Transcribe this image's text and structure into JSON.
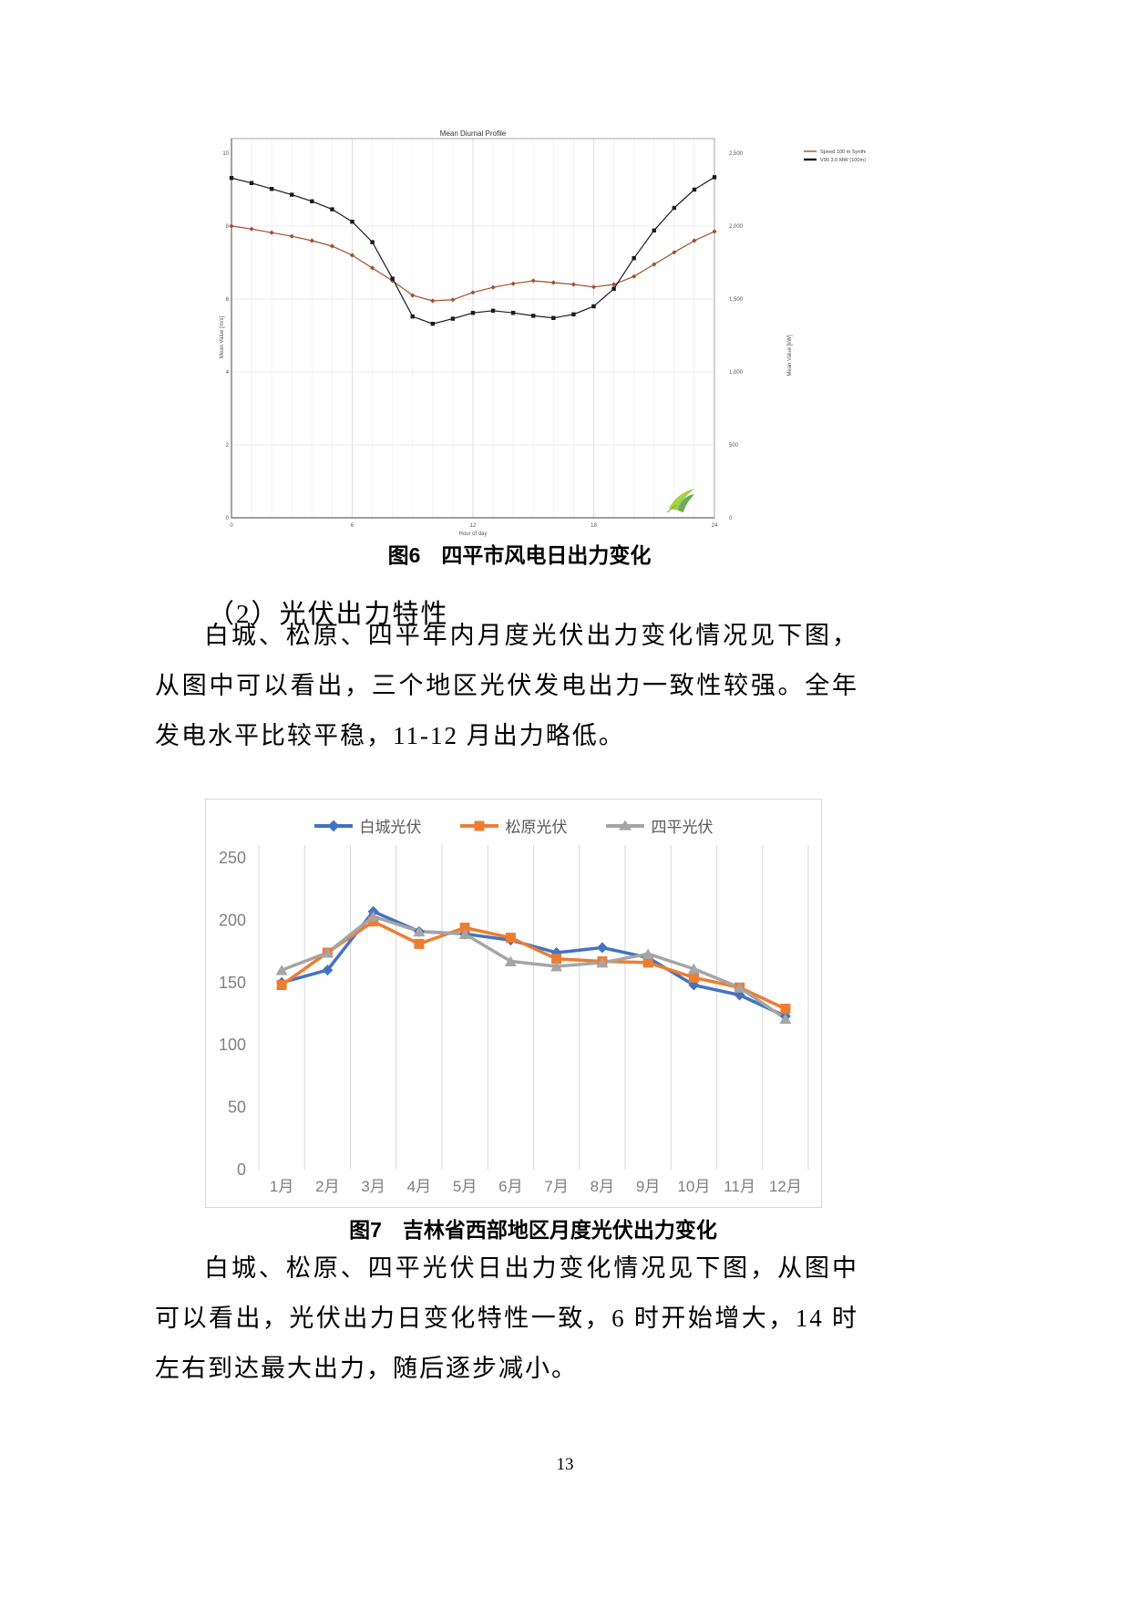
{
  "page": {
    "number": "13",
    "background": "#ffffff"
  },
  "figure6": {
    "caption": "图6　四平市风电日出力变化"
  },
  "section": {
    "heading": "（2）光伏出力特性"
  },
  "paragraphs": {
    "p1": "白城、松原、四平年内月度光伏出力变化情况见下图，从图中可以看出，三个地区光伏发电出力一致性较强。全年发电水平比较平稳，11-12 月出力略低。",
    "p2": "白城、松原、四平光伏日出力变化情况见下图，从图中可以看出，光伏出力日变化特性一致，6 时开始增大，14 时左右到达最大出力，随后逐步减小。"
  },
  "figure7": {
    "caption": "图7　吉林省西部地区月度光伏出力变化"
  },
  "chart_data": [
    {
      "type": "line",
      "title": "Mean Diurnal Profile",
      "xlabel": "Hour of day",
      "ylabel_left": "Mean Value [m/s]",
      "ylabel_right": "Mean Value [kW]",
      "x_range": [
        0,
        24
      ],
      "xticks": [
        0,
        6,
        12,
        18,
        24
      ],
      "ylim_left": [
        0,
        10
      ],
      "yticks_left": [
        0,
        2,
        4,
        6,
        8,
        10
      ],
      "ylim_right": [
        0,
        2500
      ],
      "yticks_right": [
        "0",
        "500",
        "1,000",
        "1,500",
        "2,000",
        "2,500"
      ],
      "grid": true,
      "legend_position": "top-right-outside",
      "series": [
        {
          "name": "Speed 100 m Synthesized",
          "axis": "left",
          "color": "#a0522d",
          "marker": "diamond",
          "values": [
            8.0,
            7.92,
            7.82,
            7.72,
            7.6,
            7.45,
            7.2,
            6.85,
            6.5,
            6.1,
            5.95,
            5.98,
            6.18,
            6.32,
            6.42,
            6.5,
            6.45,
            6.4,
            6.33,
            6.4,
            6.62,
            6.95,
            7.28,
            7.6,
            7.85
          ]
        },
        {
          "name": "V90 3.0 MW (100m) Power Output",
          "axis": "right",
          "color": "#1a1a1a",
          "marker": "square",
          "values": [
            2330,
            2295,
            2255,
            2215,
            2170,
            2115,
            2030,
            1890,
            1640,
            1380,
            1330,
            1365,
            1405,
            1420,
            1405,
            1385,
            1370,
            1395,
            1450,
            1570,
            1780,
            1970,
            2125,
            2250,
            2335
          ]
        }
      ]
    },
    {
      "type": "line",
      "title": "",
      "categories": [
        "1月",
        "2月",
        "3月",
        "4月",
        "5月",
        "6月",
        "7月",
        "8月",
        "9月",
        "10月",
        "11月",
        "12月"
      ],
      "ylim": [
        0,
        250
      ],
      "yticks": [
        0,
        50,
        100,
        150,
        200,
        250
      ],
      "grid": "vertical-only",
      "legend_position": "top",
      "series": [
        {
          "name": "白城光伏",
          "color": "#4472C4",
          "marker": "diamond",
          "values": [
            150,
            160,
            207,
            191,
            189,
            184,
            174,
            178,
            170,
            148,
            140,
            123
          ]
        },
        {
          "name": "松原光伏",
          "color": "#ED7D31",
          "marker": "square",
          "values": [
            148,
            174,
            199,
            181,
            194,
            186,
            169,
            167,
            166,
            154,
            146,
            129
          ]
        },
        {
          "name": "四平光伏",
          "color": "#A5A5A5",
          "marker": "triangle",
          "values": [
            160,
            174,
            203,
            191,
            189,
            167,
            163,
            166,
            173,
            161,
            146,
            121
          ]
        }
      ]
    }
  ]
}
